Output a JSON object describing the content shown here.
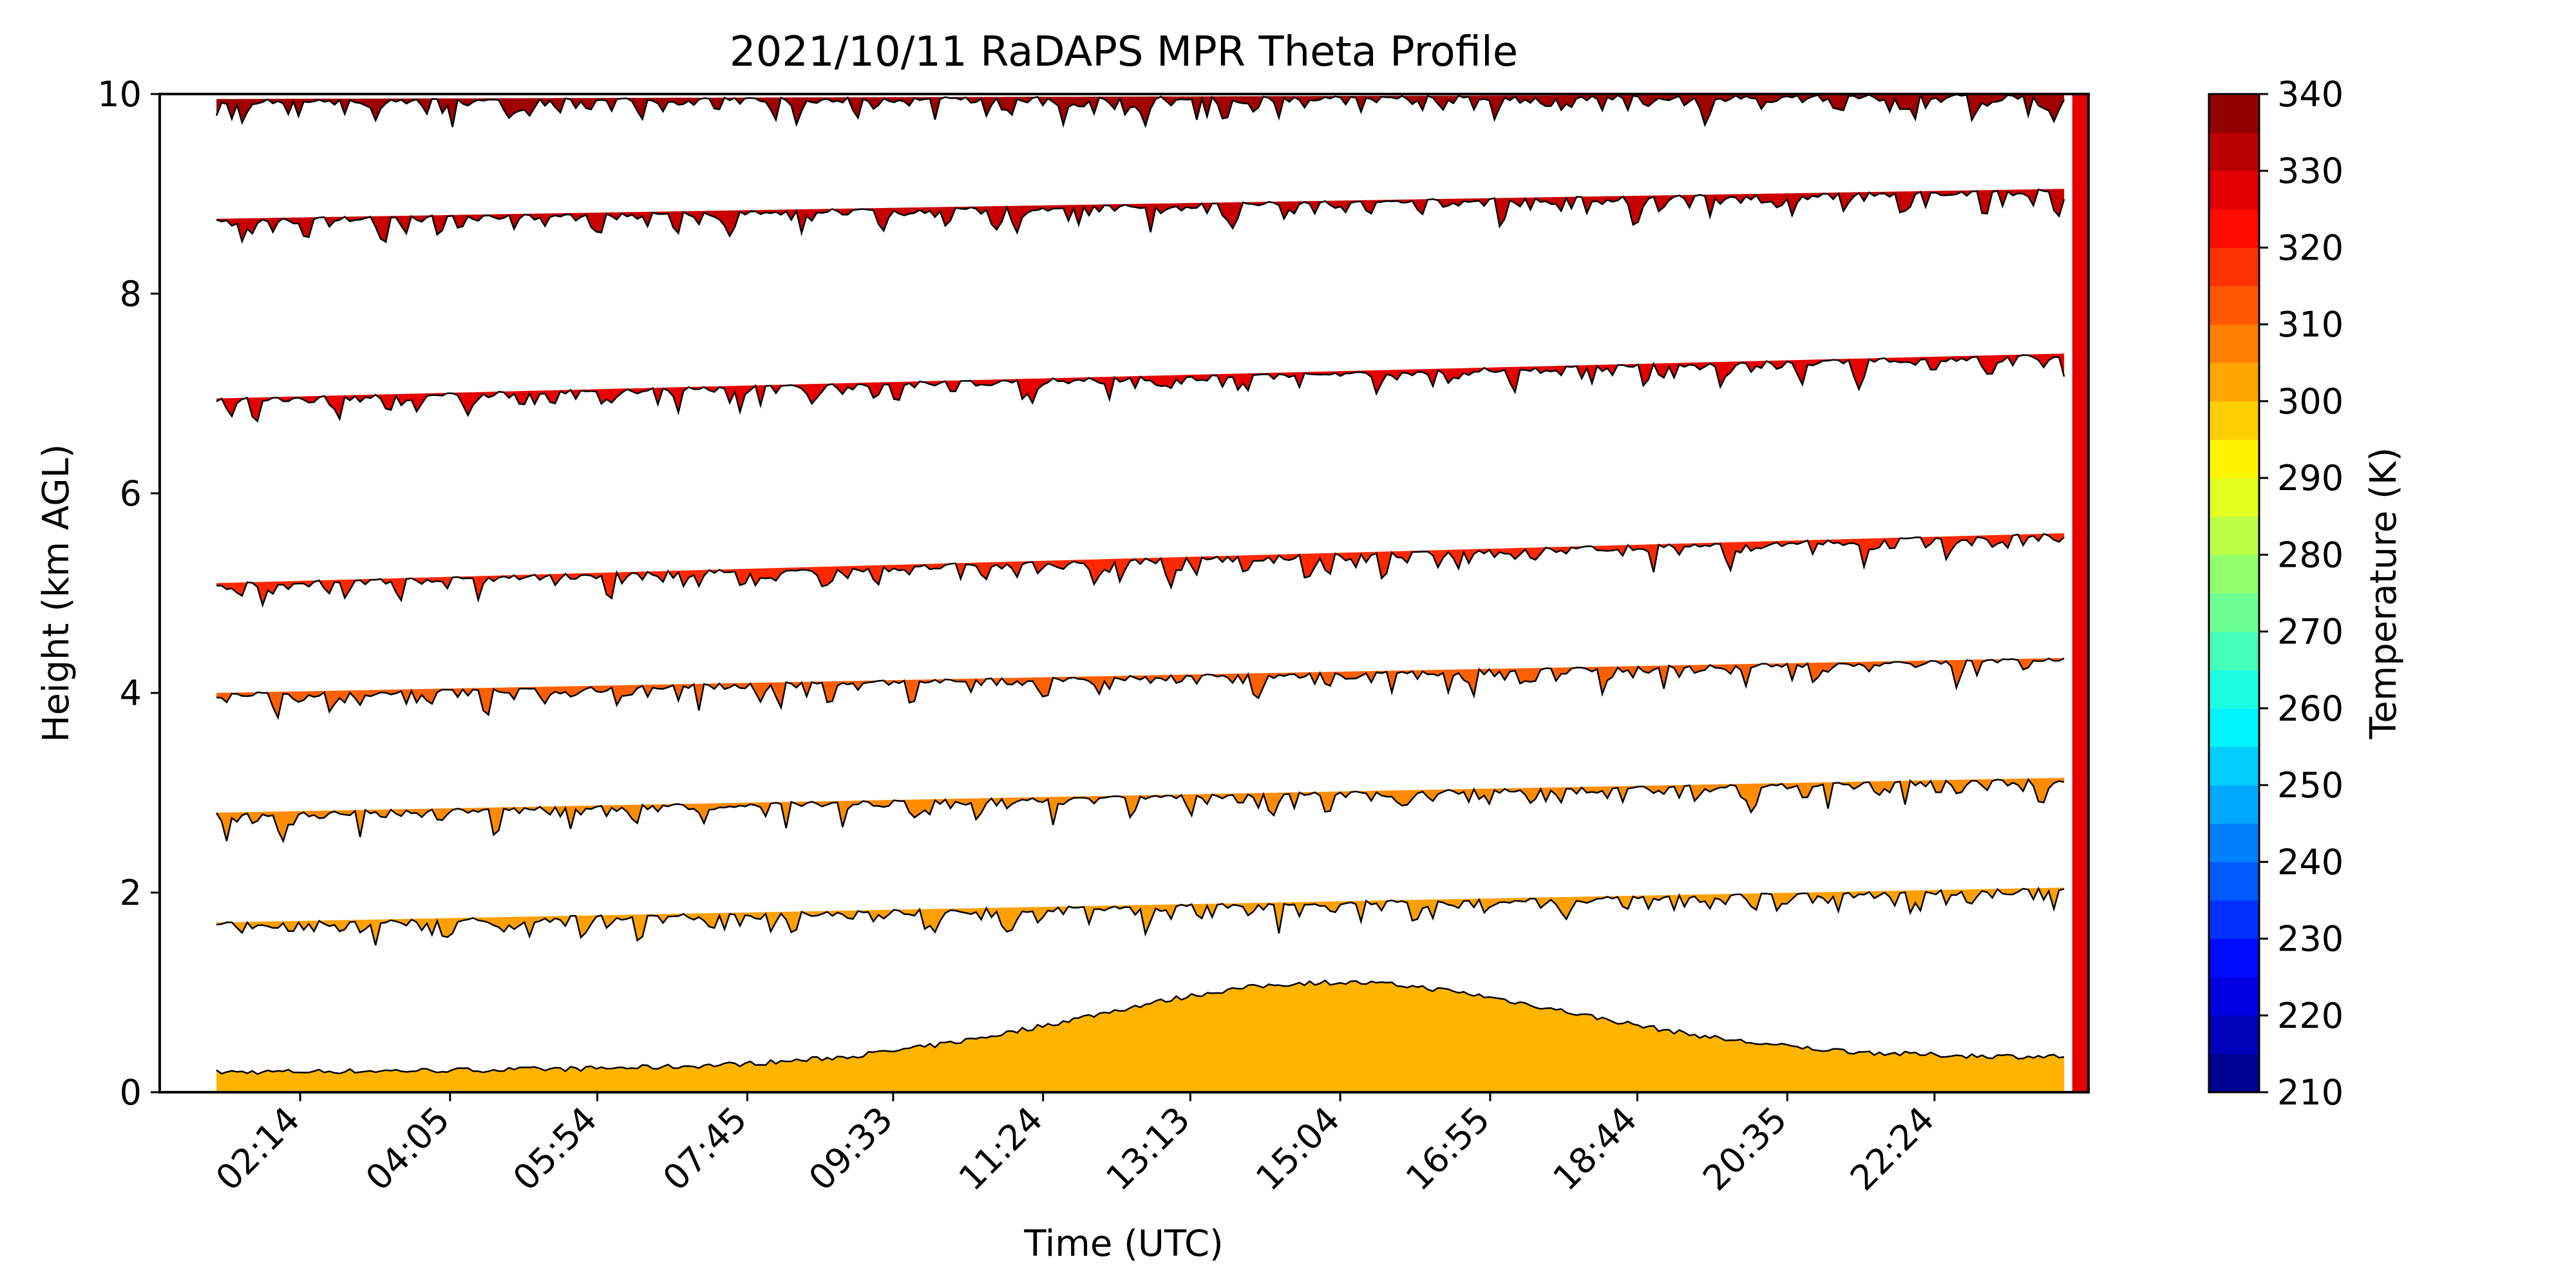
{
  "chart_data": {
    "type": "heatmap",
    "title": "2021/10/11 RaDAPS MPR Theta Profile",
    "xlabel": "Time (UTC)",
    "ylabel": "Height (km AGL)",
    "colorbar_label": "Temperature (K)",
    "x_ticks": [
      "02:14",
      "04:05",
      "05:54",
      "07:45",
      "09:33",
      "11:24",
      "13:13",
      "15:04",
      "16:55",
      "18:44",
      "20:35",
      "22:24"
    ],
    "x_tick_hours": [
      2.233,
      4.083,
      5.9,
      7.75,
      9.55,
      11.4,
      13.217,
      15.067,
      16.917,
      18.733,
      20.583,
      22.4
    ],
    "xlim_hours": [
      0.5,
      24.3
    ],
    "ylim": [
      0,
      10
    ],
    "y_ticks": [
      0,
      2,
      4,
      6,
      8,
      10
    ],
    "colorbar_ticks": [
      210,
      220,
      230,
      240,
      250,
      260,
      270,
      280,
      290,
      300,
      310,
      320,
      330,
      340
    ],
    "colorbar_range": [
      210,
      340
    ],
    "contour_levels_K": [
      295,
      300,
      305,
      310,
      315,
      320,
      325,
      330,
      335,
      340
    ],
    "contour_bands": [
      {
        "level_K": 300,
        "fill": "#ffb400",
        "height_km_start": 0.2,
        "height_km_end": 0.35,
        "peak_km": 1.1,
        "peak_hour": 15.0
      },
      {
        "level_K": 305,
        "fill": "#ffa000",
        "height_km_start": 1.7,
        "height_km_end": 2.05
      },
      {
        "level_K": 310,
        "fill": "#ff8c00",
        "height_km_start": 2.8,
        "height_km_end": 3.15
      },
      {
        "level_K": 315,
        "fill": "#ff5f00",
        "height_km_start": 4.0,
        "height_km_end": 4.35
      },
      {
        "level_K": 320,
        "fill": "#ff2800",
        "height_km_start": 5.1,
        "height_km_end": 5.6
      },
      {
        "level_K": 325,
        "fill": "#e60000",
        "height_km_start": 6.95,
        "height_km_end": 7.4
      },
      {
        "level_K": 330,
        "fill": "#c80000",
        "height_km_start": 8.75,
        "height_km_end": 9.05
      },
      {
        "level_K": 335,
        "fill": "#a00000",
        "height_km_start": 9.95,
        "height_km_end": 10.0
      }
    ]
  }
}
